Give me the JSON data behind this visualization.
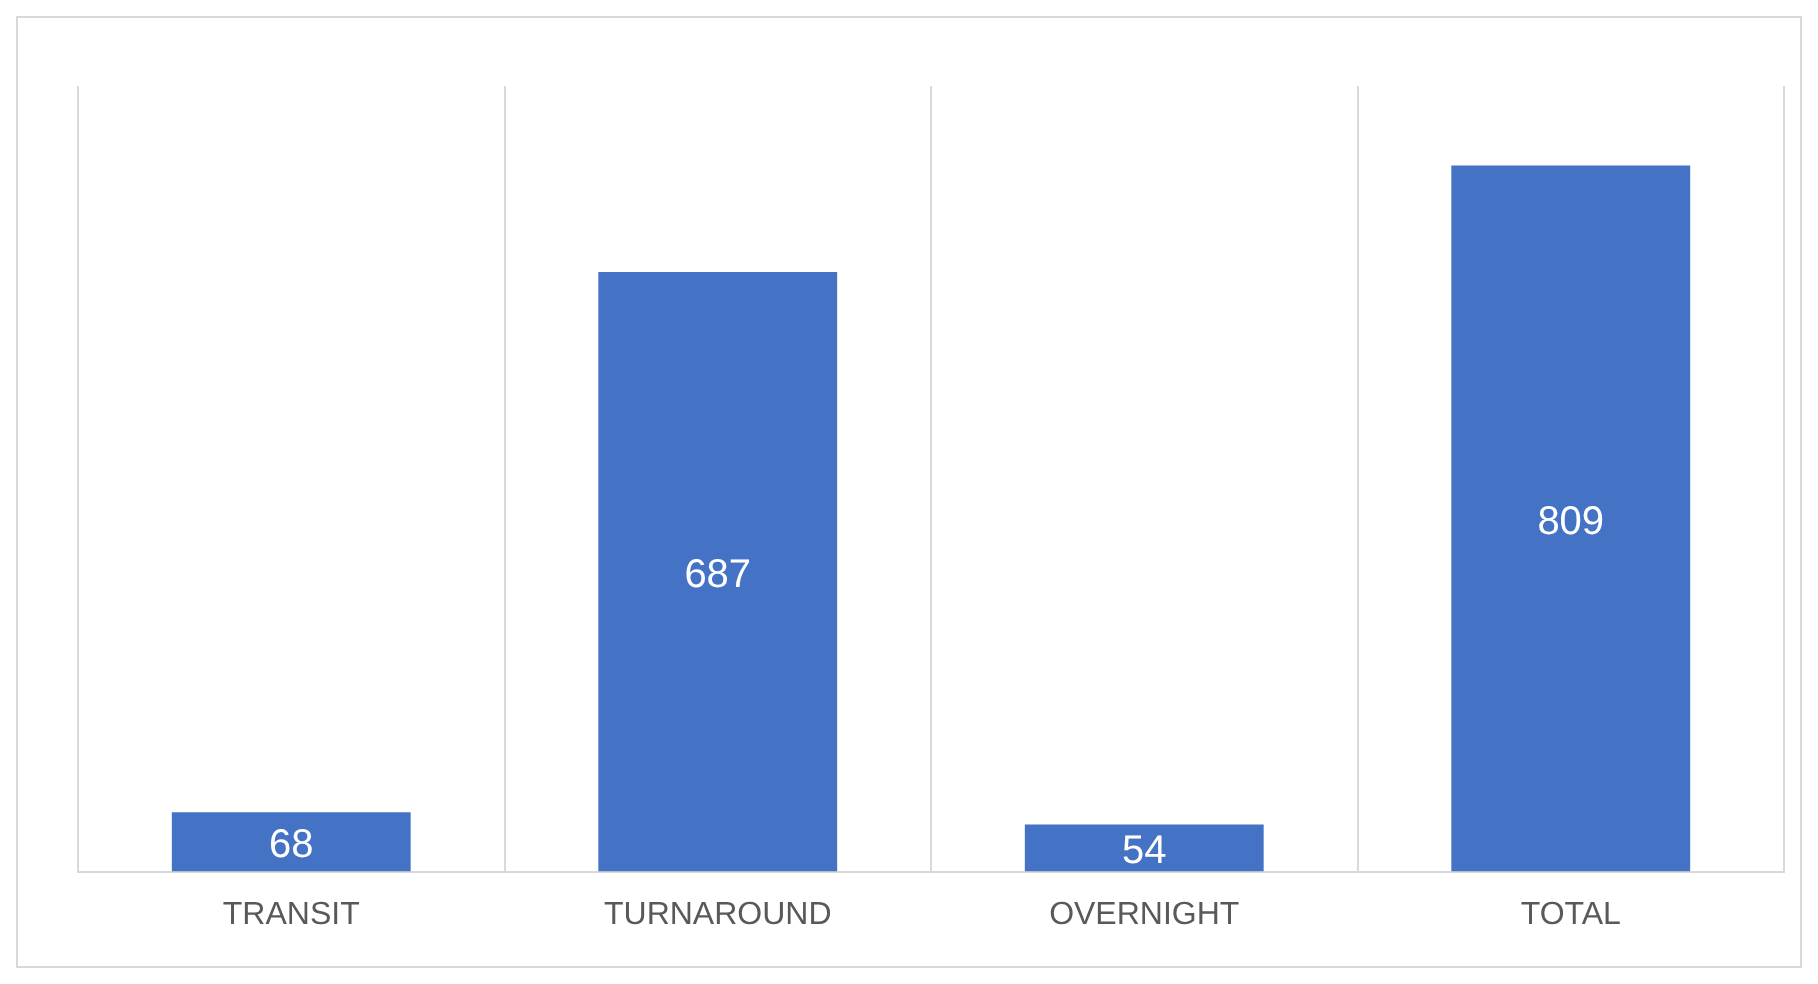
{
  "chart_data": {
    "type": "bar",
    "categories": [
      "TRANSIT",
      "TURNAROUND",
      "OVERNIGHT",
      "TOTAL"
    ],
    "values": [
      68,
      687,
      54,
      809
    ],
    "color": "#4472c4",
    "data_labels": true,
    "grid": "x",
    "legend": false
  }
}
